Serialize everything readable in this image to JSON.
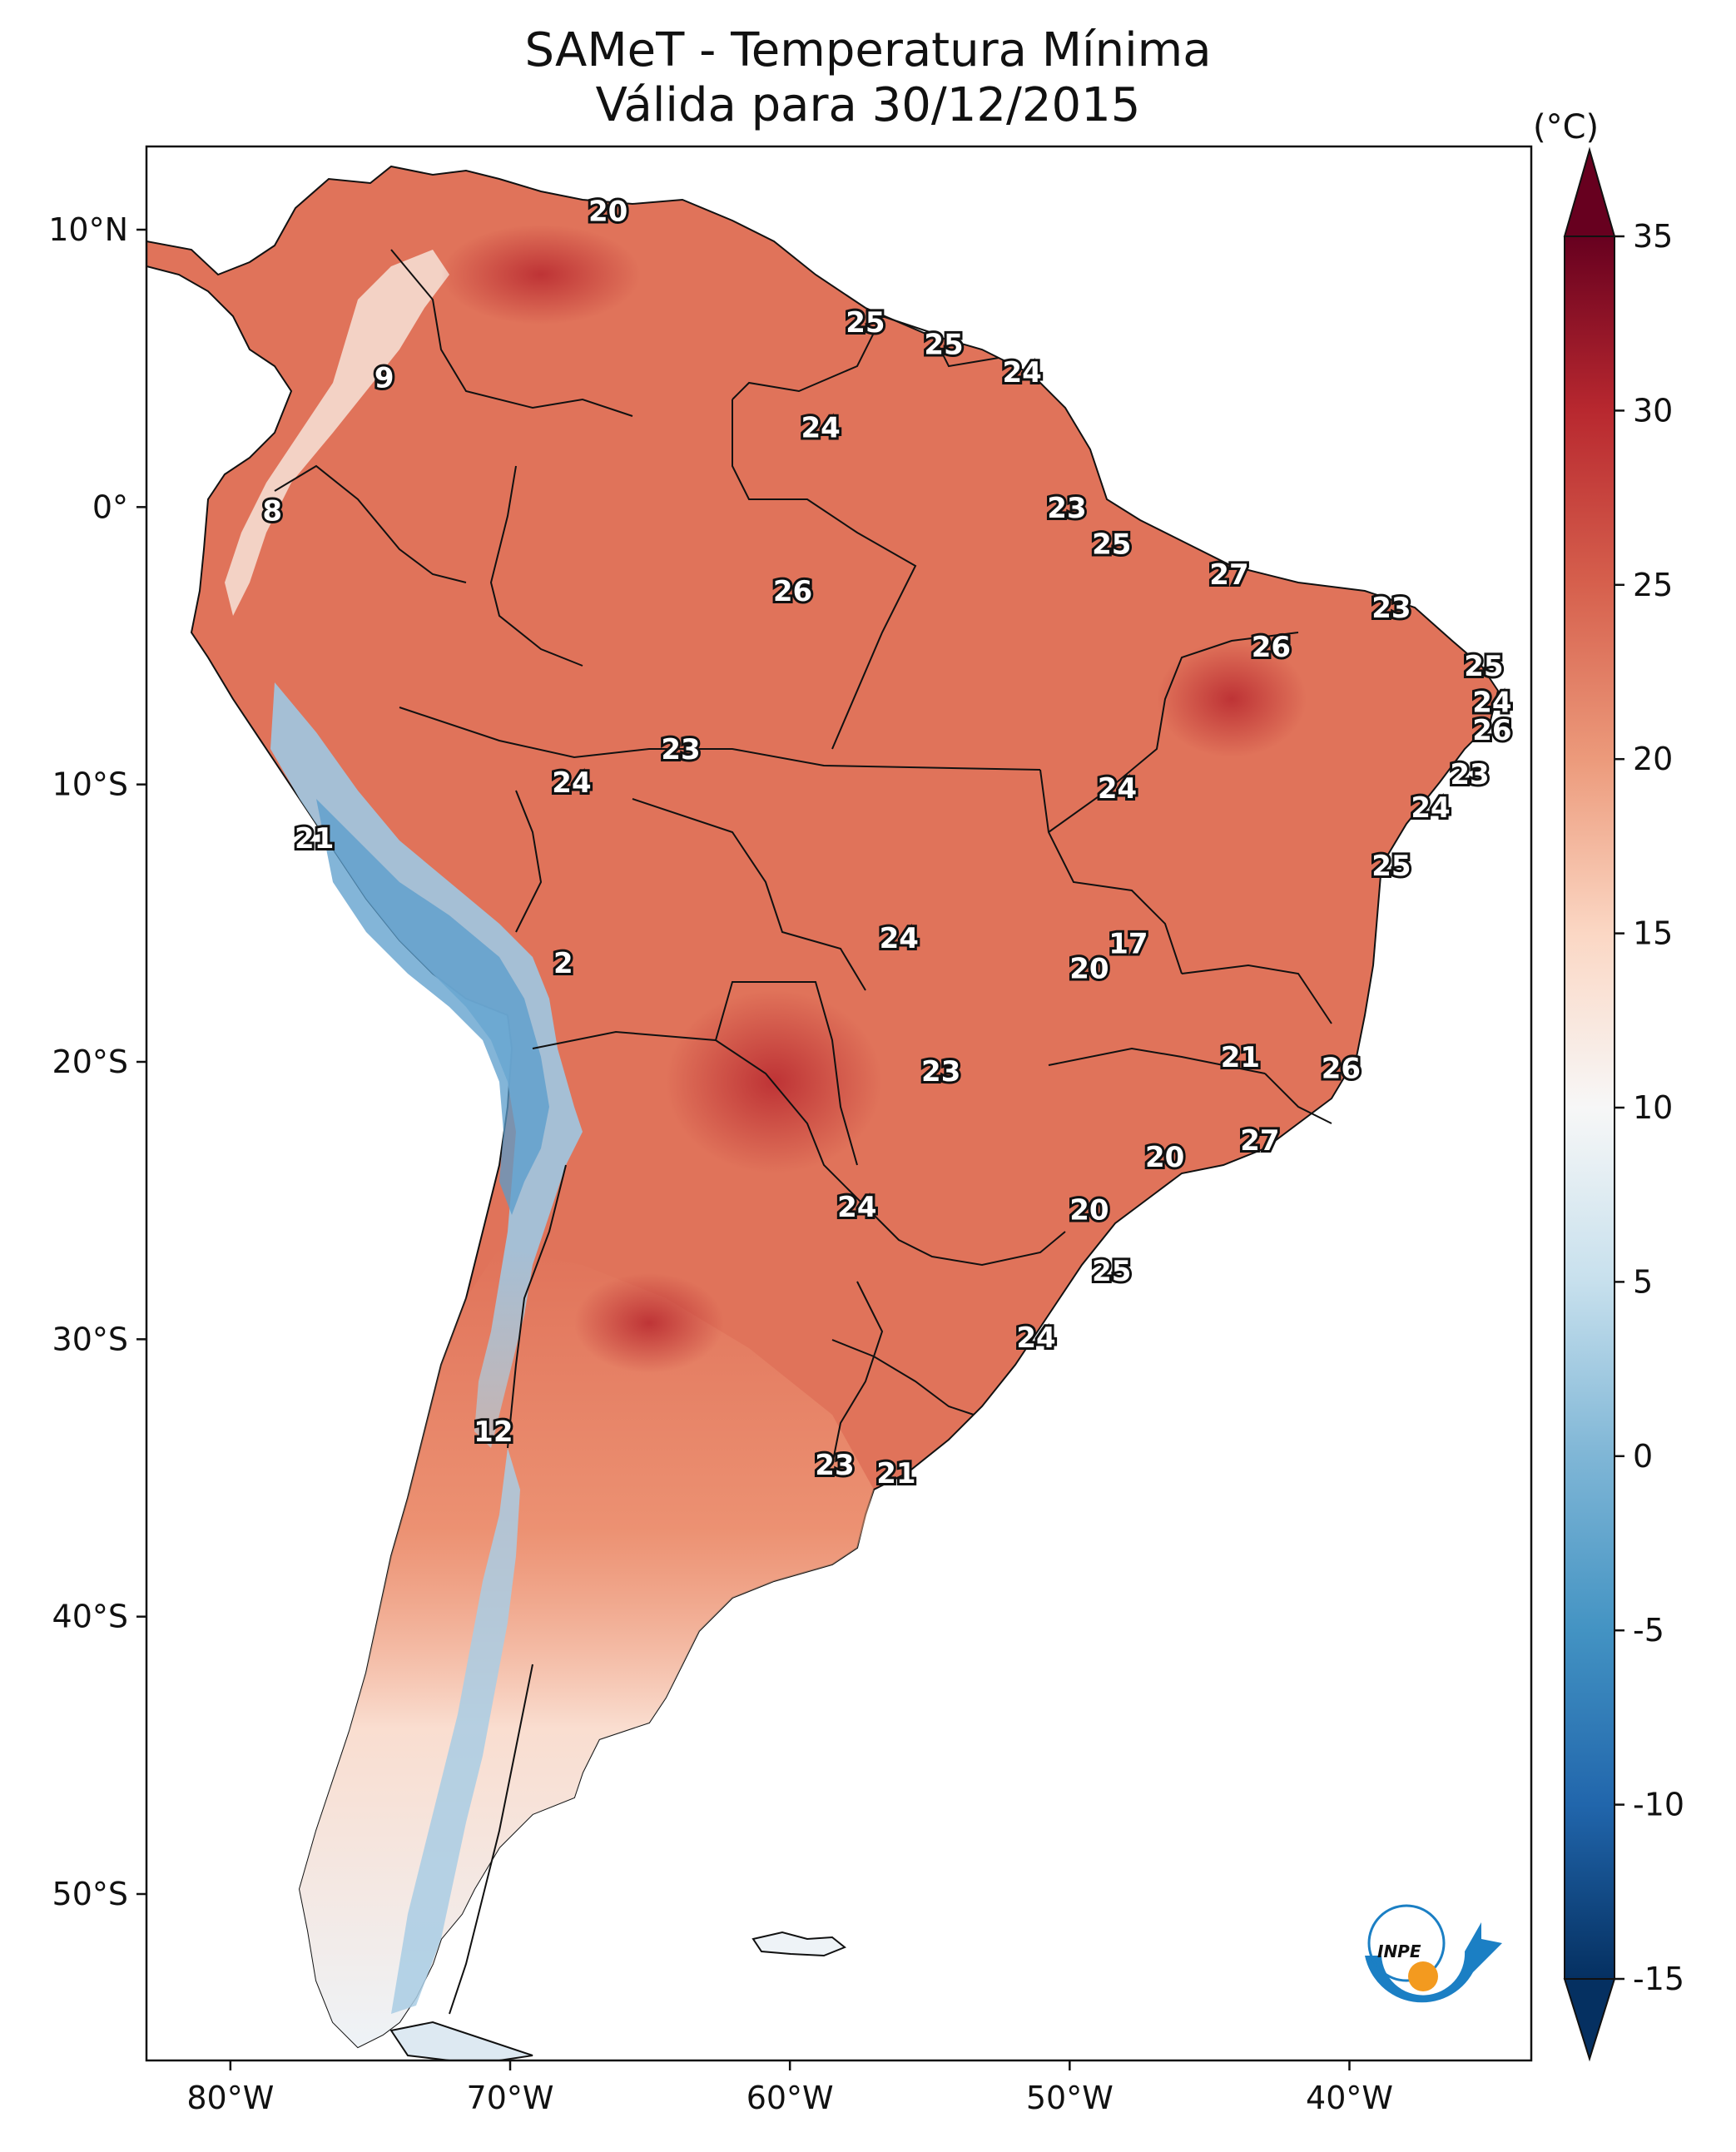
{
  "title": {
    "line1": "SAMeT - Temperatura Mínima",
    "line2": "Válida para 30/12/2015"
  },
  "unit": "(°C)",
  "map": {
    "lat_ticks": [
      {
        "value": 10,
        "label": "10°N"
      },
      {
        "value": 0,
        "label": "0°"
      },
      {
        "value": -10,
        "label": "10°S"
      },
      {
        "value": -20,
        "label": "20°S"
      },
      {
        "value": -30,
        "label": "30°S"
      },
      {
        "value": -40,
        "label": "40°S"
      },
      {
        "value": -50,
        "label": "50°S"
      }
    ],
    "lon_ticks": [
      {
        "value": -80,
        "label": "80°W"
      },
      {
        "value": -70,
        "label": "70°W"
      },
      {
        "value": -60,
        "label": "60°W"
      },
      {
        "value": -50,
        "label": "50°W"
      },
      {
        "value": -40,
        "label": "40°W"
      }
    ],
    "extent": {
      "lon": [
        -83,
        -33.5
      ],
      "lat": [
        -56,
        13
      ]
    },
    "logo": "INPE",
    "colorscale": "red-white-blue diverging",
    "station_values": [
      {
        "lon": -66.5,
        "lat": 10.6,
        "value": "20"
      },
      {
        "lon": -74.5,
        "lat": 4.6,
        "value": "9"
      },
      {
        "lon": -57.3,
        "lat": 6.6,
        "value": "25"
      },
      {
        "lon": -54.5,
        "lat": 5.8,
        "value": "25"
      },
      {
        "lon": -51.7,
        "lat": 4.8,
        "value": "24"
      },
      {
        "lon": -58.9,
        "lat": 2.8,
        "value": "24"
      },
      {
        "lon": -78.5,
        "lat": -0.2,
        "value": "8"
      },
      {
        "lon": -50.1,
        "lat": -0.1,
        "value": "23"
      },
      {
        "lon": -48.5,
        "lat": -1.4,
        "value": "25"
      },
      {
        "lon": -59.9,
        "lat": -3.1,
        "value": "26"
      },
      {
        "lon": -44.3,
        "lat": -2.5,
        "value": "27"
      },
      {
        "lon": -38.5,
        "lat": -3.7,
        "value": "23"
      },
      {
        "lon": -42.8,
        "lat": -5.1,
        "value": "26"
      },
      {
        "lon": -35.2,
        "lat": -5.8,
        "value": "25"
      },
      {
        "lon": -34.9,
        "lat": -7.1,
        "value": "24"
      },
      {
        "lon": -34.9,
        "lat": -8.1,
        "value": "26"
      },
      {
        "lon": -63.9,
        "lat": -8.8,
        "value": "23"
      },
      {
        "lon": -35.7,
        "lat": -9.7,
        "value": "23"
      },
      {
        "lon": -67.8,
        "lat": -10.0,
        "value": "24"
      },
      {
        "lon": -48.3,
        "lat": -10.2,
        "value": "24"
      },
      {
        "lon": -37.1,
        "lat": -10.9,
        "value": "24"
      },
      {
        "lon": -77.0,
        "lat": -12.0,
        "value": "21"
      },
      {
        "lon": -38.5,
        "lat": -13.0,
        "value": "25"
      },
      {
        "lon": -56.1,
        "lat": -15.6,
        "value": "24"
      },
      {
        "lon": -47.9,
        "lat": -15.8,
        "value": "17"
      },
      {
        "lon": -49.3,
        "lat": -16.7,
        "value": "20"
      },
      {
        "lon": -68.1,
        "lat": -16.5,
        "value": "2"
      },
      {
        "lon": -43.9,
        "lat": -19.9,
        "value": "21"
      },
      {
        "lon": -40.3,
        "lat": -20.3,
        "value": "26"
      },
      {
        "lon": -54.6,
        "lat": -20.4,
        "value": "23"
      },
      {
        "lon": -43.2,
        "lat": -22.9,
        "value": "27"
      },
      {
        "lon": -46.6,
        "lat": -23.5,
        "value": "20"
      },
      {
        "lon": -57.6,
        "lat": -25.3,
        "value": "24"
      },
      {
        "lon": -49.3,
        "lat": -25.4,
        "value": "20"
      },
      {
        "lon": -48.5,
        "lat": -27.6,
        "value": "25"
      },
      {
        "lon": -51.2,
        "lat": -30.0,
        "value": "24"
      },
      {
        "lon": -70.6,
        "lat": -33.4,
        "value": "12"
      },
      {
        "lon": -58.4,
        "lat": -34.6,
        "value": "23"
      },
      {
        "lon": -56.2,
        "lat": -34.9,
        "value": "21"
      }
    ]
  },
  "colorbar": {
    "ticks": [
      "35",
      "30",
      "25",
      "20",
      "15",
      "10",
      "5",
      "0",
      "-5",
      "-10",
      "-15"
    ],
    "tick_values": [
      35,
      30,
      25,
      20,
      15,
      10,
      5,
      0,
      -5,
      -10,
      -15
    ],
    "range": [
      -15,
      35
    ],
    "colors": {
      "max": "#67001f",
      "c30": "#b8282f",
      "c25": "#d6604d",
      "c20": "#ec9a7b",
      "c15": "#fbd7c4",
      "c10": "#f7f7f7",
      "c5": "#c7e0ed",
      "c0": "#7fb6d6",
      "cm5": "#4393c3",
      "cm10": "#2166ac",
      "min": "#053061"
    }
  }
}
